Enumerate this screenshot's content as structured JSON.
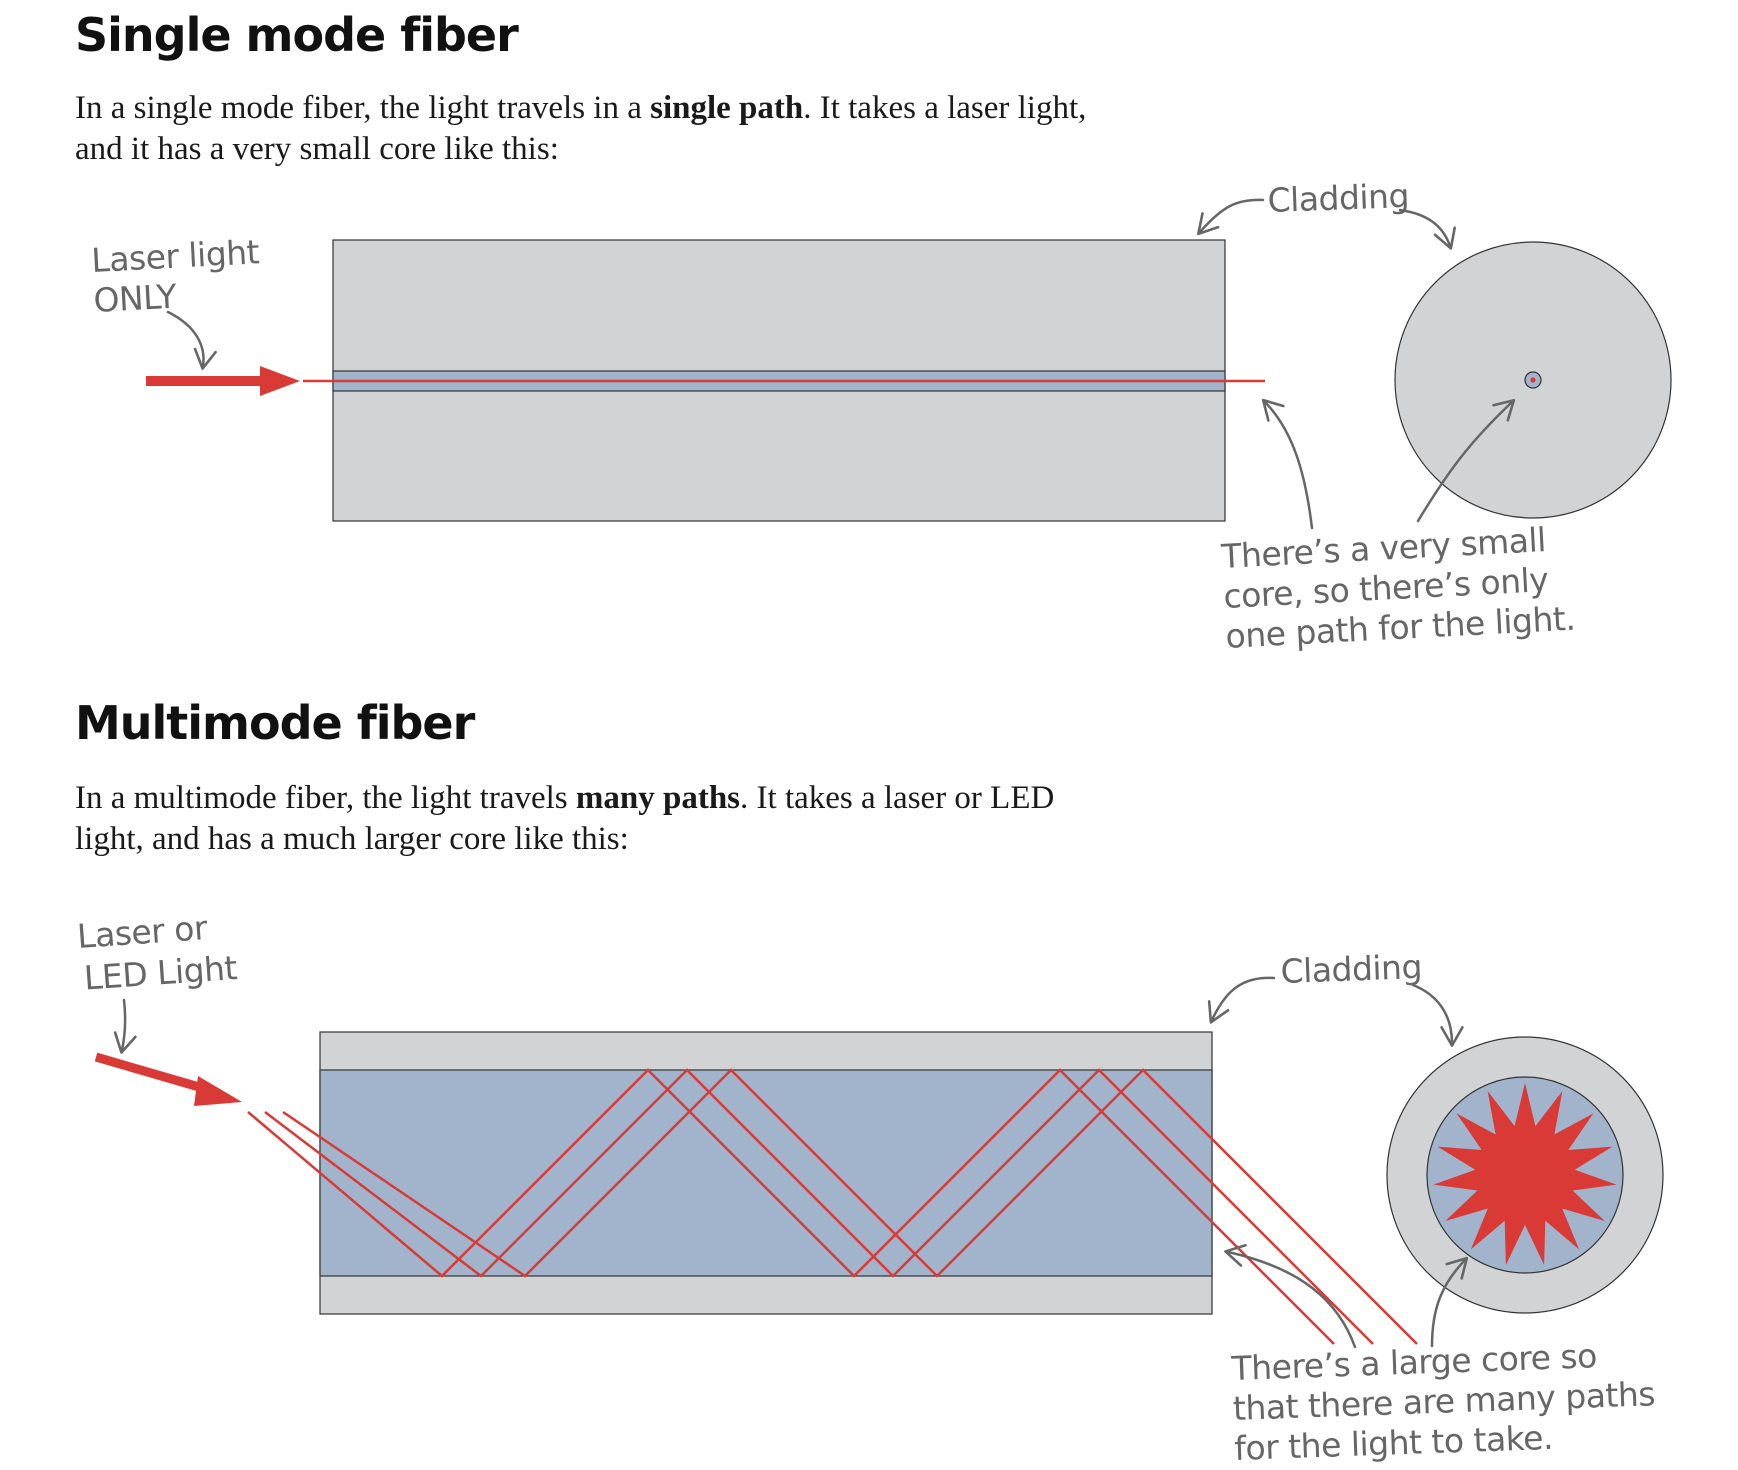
{
  "single_mode": {
    "heading": "Single mode fiber",
    "text_before": "In a single mode fiber, the light travels in a ",
    "text_bold": "single path",
    "text_after": ". It takes a laser light, and it has a very small core like this:",
    "source_label_lines": [
      "Laser light",
      "ONLY"
    ],
    "cladding_label": "Cladding",
    "core_note_lines": [
      "There’s a very small",
      "core, so there’s only",
      "one path for the light."
    ]
  },
  "multimode": {
    "heading": "Multimode fiber",
    "text_before": "In a multimode fiber, the light travels ",
    "text_bold": "many paths",
    "text_after": ". It takes a laser or LED light, and has a much larger core like this:",
    "source_label_lines": [
      "Laser or",
      "LED Light"
    ],
    "cladding_label": "Cladding",
    "core_note_lines": [
      "There’s a large core so",
      "that there are many paths",
      "for the light to take."
    ]
  },
  "colors": {
    "cladding": "#d2d3d5",
    "core": "#a1b4cb",
    "light": "#d93a35",
    "outline": "#333333",
    "annotation": "#666666"
  }
}
